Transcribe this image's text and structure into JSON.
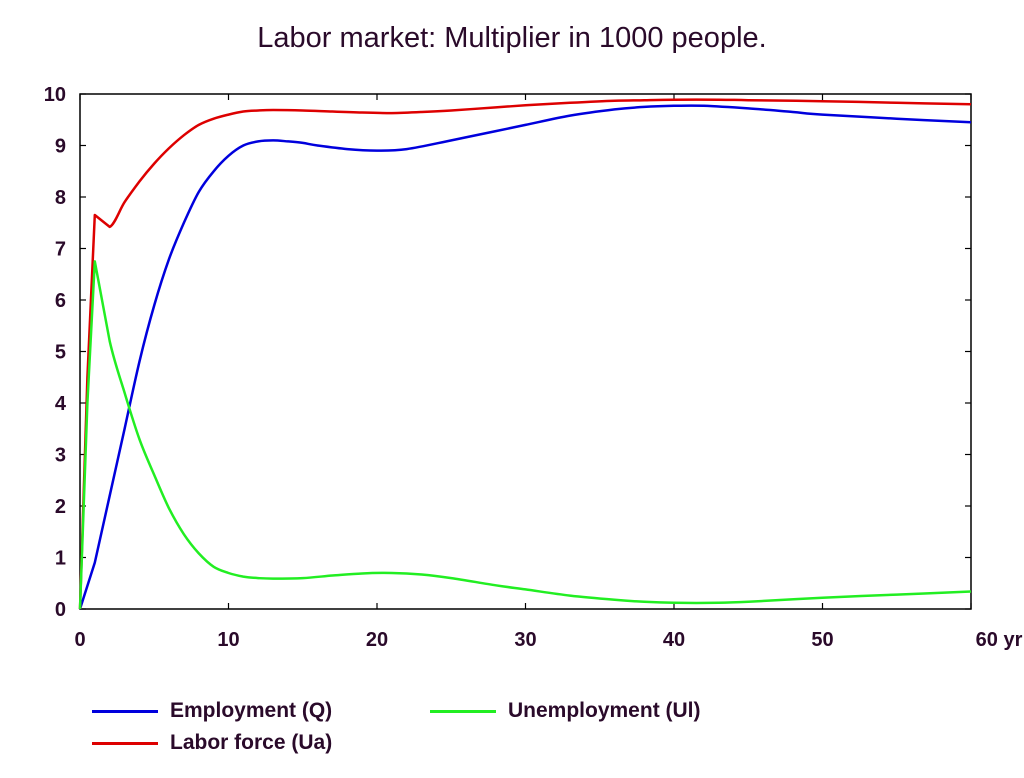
{
  "chart_data": {
    "type": "line",
    "title": "Labor market: Multiplier in 1000 people.",
    "xlabel": "",
    "ylabel": "",
    "x_unit": "yr",
    "xlim": [
      0,
      60
    ],
    "ylim": [
      0,
      10
    ],
    "x_ticks": [
      0,
      10,
      20,
      30,
      40,
      50,
      60
    ],
    "x_tick_labels": [
      "0",
      "10",
      "20",
      "30",
      "40",
      "50",
      "60 yr"
    ],
    "y_ticks": [
      0,
      1,
      2,
      3,
      4,
      5,
      6,
      7,
      8,
      9,
      10
    ],
    "y_tick_labels": [
      "0",
      "1",
      "2",
      "3",
      "4",
      "5",
      "6",
      "7",
      "8",
      "9",
      "10"
    ],
    "grid": false,
    "legend_position": "bottom",
    "series": [
      {
        "name": "Employment (Q)",
        "color": "#0000dd",
        "x": [
          0,
          1,
          2,
          3,
          4,
          5,
          6,
          7,
          8,
          9,
          10,
          11,
          12,
          13,
          14,
          15,
          16,
          18,
          20,
          22,
          25,
          28,
          30,
          33,
          36,
          38,
          40,
          42,
          45,
          48,
          50,
          55,
          60
        ],
        "y": [
          0,
          0.9,
          2.2,
          3.5,
          4.8,
          5.9,
          6.8,
          7.5,
          8.1,
          8.5,
          8.8,
          9.0,
          9.08,
          9.1,
          9.08,
          9.05,
          9.0,
          8.93,
          8.9,
          8.93,
          9.1,
          9.28,
          9.4,
          9.58,
          9.7,
          9.75,
          9.77,
          9.77,
          9.72,
          9.65,
          9.6,
          9.52,
          9.45
        ]
      },
      {
        "name": "Labor force (Ua)",
        "color": "#dd0000",
        "x": [
          0,
          0.5,
          1,
          2,
          3,
          4,
          5,
          6,
          7,
          8,
          9,
          10,
          11,
          12,
          13,
          15,
          17,
          19,
          21,
          23,
          25,
          28,
          30,
          33,
          36,
          38,
          40,
          43,
          45,
          50,
          55,
          60
        ],
        "y": [
          0,
          4.5,
          7.65,
          7.42,
          7.9,
          8.3,
          8.65,
          8.95,
          9.2,
          9.4,
          9.52,
          9.6,
          9.66,
          9.68,
          9.69,
          9.68,
          9.66,
          9.64,
          9.63,
          9.65,
          9.68,
          9.74,
          9.78,
          9.83,
          9.87,
          9.88,
          9.89,
          9.89,
          9.88,
          9.86,
          9.83,
          9.8
        ]
      },
      {
        "name": "Unemployment (Ul)",
        "color": "#22ee22",
        "x": [
          0,
          0.5,
          1,
          2,
          3,
          4,
          5,
          6,
          7,
          8,
          9,
          10,
          11,
          12,
          13,
          15,
          17,
          19,
          21,
          23,
          25,
          28,
          30,
          33,
          36,
          38,
          40,
          43,
          45,
          50,
          55,
          60
        ],
        "y": [
          0,
          4.0,
          6.75,
          5.2,
          4.2,
          3.3,
          2.6,
          1.95,
          1.45,
          1.08,
          0.82,
          0.7,
          0.63,
          0.6,
          0.59,
          0.6,
          0.65,
          0.69,
          0.7,
          0.67,
          0.6,
          0.46,
          0.38,
          0.26,
          0.18,
          0.14,
          0.12,
          0.12,
          0.14,
          0.22,
          0.28,
          0.34
        ]
      }
    ]
  }
}
